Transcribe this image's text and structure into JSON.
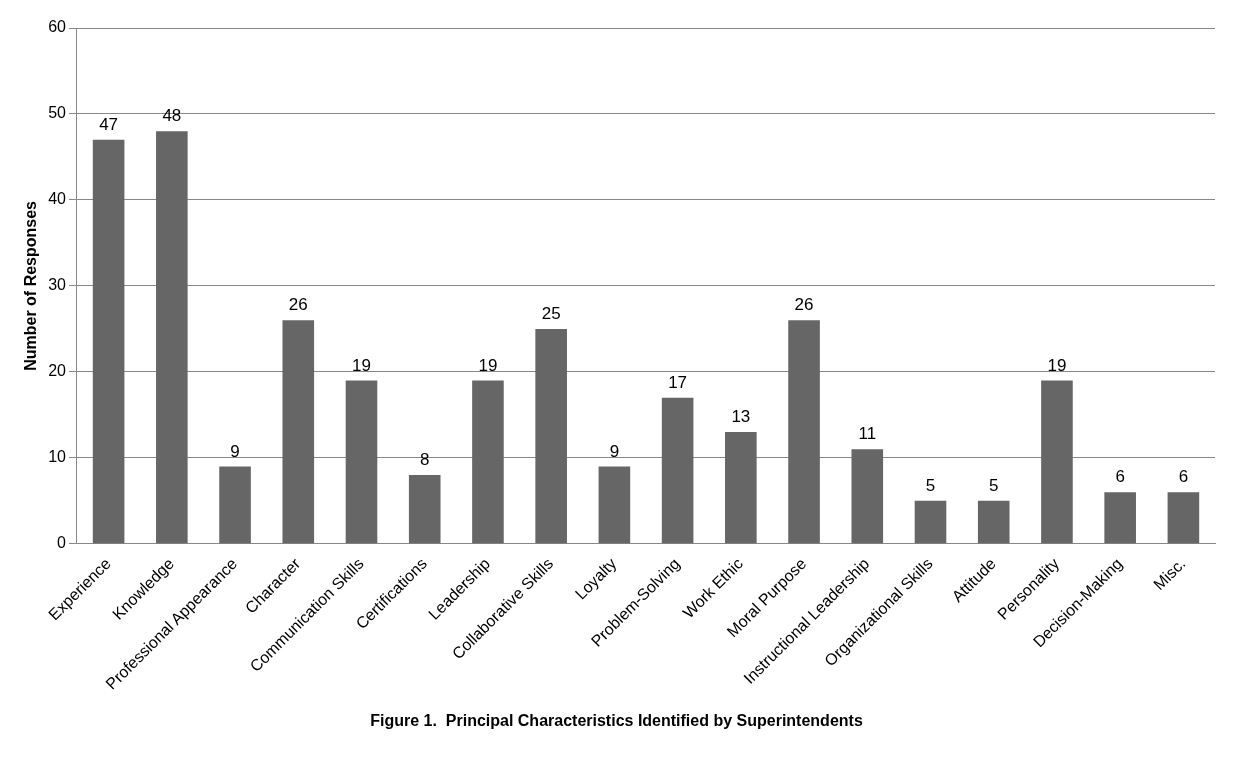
{
  "chart_data": {
    "type": "bar",
    "title": "Figure 1.  Principal Characteristics Identified by Superintendents",
    "ylabel": "Number of Responses",
    "categories": [
      "Experience",
      "Knowledge",
      "Professional Appearance",
      "Character",
      "Communication Skills",
      "Certifications",
      "Leadership",
      "Collaborative Skills",
      "Loyalty",
      "Problem-Solving",
      "Work Ethic",
      "Moral Purpose",
      "Instructional Leadership",
      "Organizational Skills",
      "Attitude",
      "Personality",
      "Decision-Making",
      "Misc."
    ],
    "values": [
      47,
      48,
      9,
      26,
      19,
      8,
      19,
      25,
      9,
      17,
      13,
      26,
      11,
      5,
      5,
      19,
      6,
      6
    ],
    "color": "#666666",
    "ylim": [
      0,
      60
    ],
    "yticks": [
      0,
      10,
      20,
      30,
      40,
      50,
      60
    ],
    "grid": "y",
    "data_labels": true
  }
}
